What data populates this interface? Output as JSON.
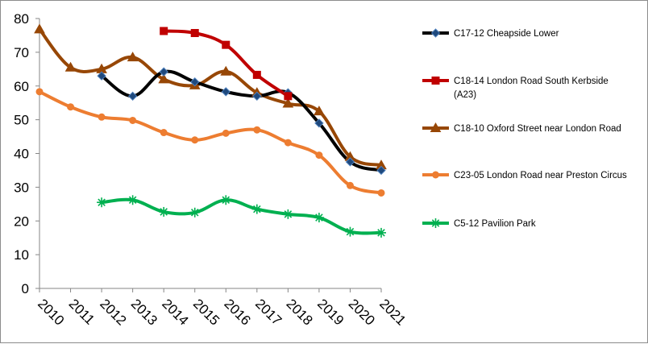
{
  "chart_data": {
    "type": "line",
    "title": "",
    "xlabel": "",
    "ylabel": "",
    "x": [
      "2010",
      "2011",
      "2012",
      "2013",
      "2014",
      "2015",
      "2016",
      "2017",
      "2018",
      "2019",
      "2020",
      "2021"
    ],
    "ylim": [
      0,
      80
    ],
    "yticks": [
      "0",
      "10",
      "20",
      "30",
      "40",
      "50",
      "60",
      "70",
      "80"
    ],
    "grid": false,
    "legend_position": "right",
    "series": [
      {
        "name": "C17-12 Cheapside Lower",
        "color": "#000000",
        "marker": "diamond",
        "values": [
          null,
          null,
          63.0,
          57.0,
          64.2,
          61.2,
          58.3,
          57.0,
          58.0,
          49.0,
          37.5,
          35.0
        ]
      },
      {
        "name": "C18-14 London Road South Kerbside (A23)",
        "color": "#c00000",
        "marker": "square",
        "values": [
          null,
          null,
          null,
          null,
          76.3,
          75.7,
          72.2,
          63.3,
          57.0,
          null,
          null,
          null
        ]
      },
      {
        "name": "C18-10 Oxford Street near London Road",
        "color": "#974706",
        "marker": "triangle",
        "values": [
          76.8,
          65.5,
          65.0,
          68.5,
          62.0,
          60.2,
          64.3,
          58.0,
          54.8,
          52.5,
          39.0,
          36.5
        ]
      },
      {
        "name": "C23-05 London Road near Preston Circus",
        "color": "#ed7d31",
        "marker": "circle",
        "values": [
          58.3,
          53.8,
          50.8,
          49.8,
          46.2,
          44.0,
          46.0,
          47.0,
          43.2,
          39.5,
          30.5,
          28.3
        ]
      },
      {
        "name": "C5-12 Pavilion Park",
        "color": "#00b050",
        "marker": "asterisk",
        "values": [
          null,
          null,
          25.5,
          26.2,
          22.7,
          22.5,
          26.2,
          23.5,
          22.0,
          21.0,
          16.8,
          16.5
        ]
      }
    ]
  }
}
